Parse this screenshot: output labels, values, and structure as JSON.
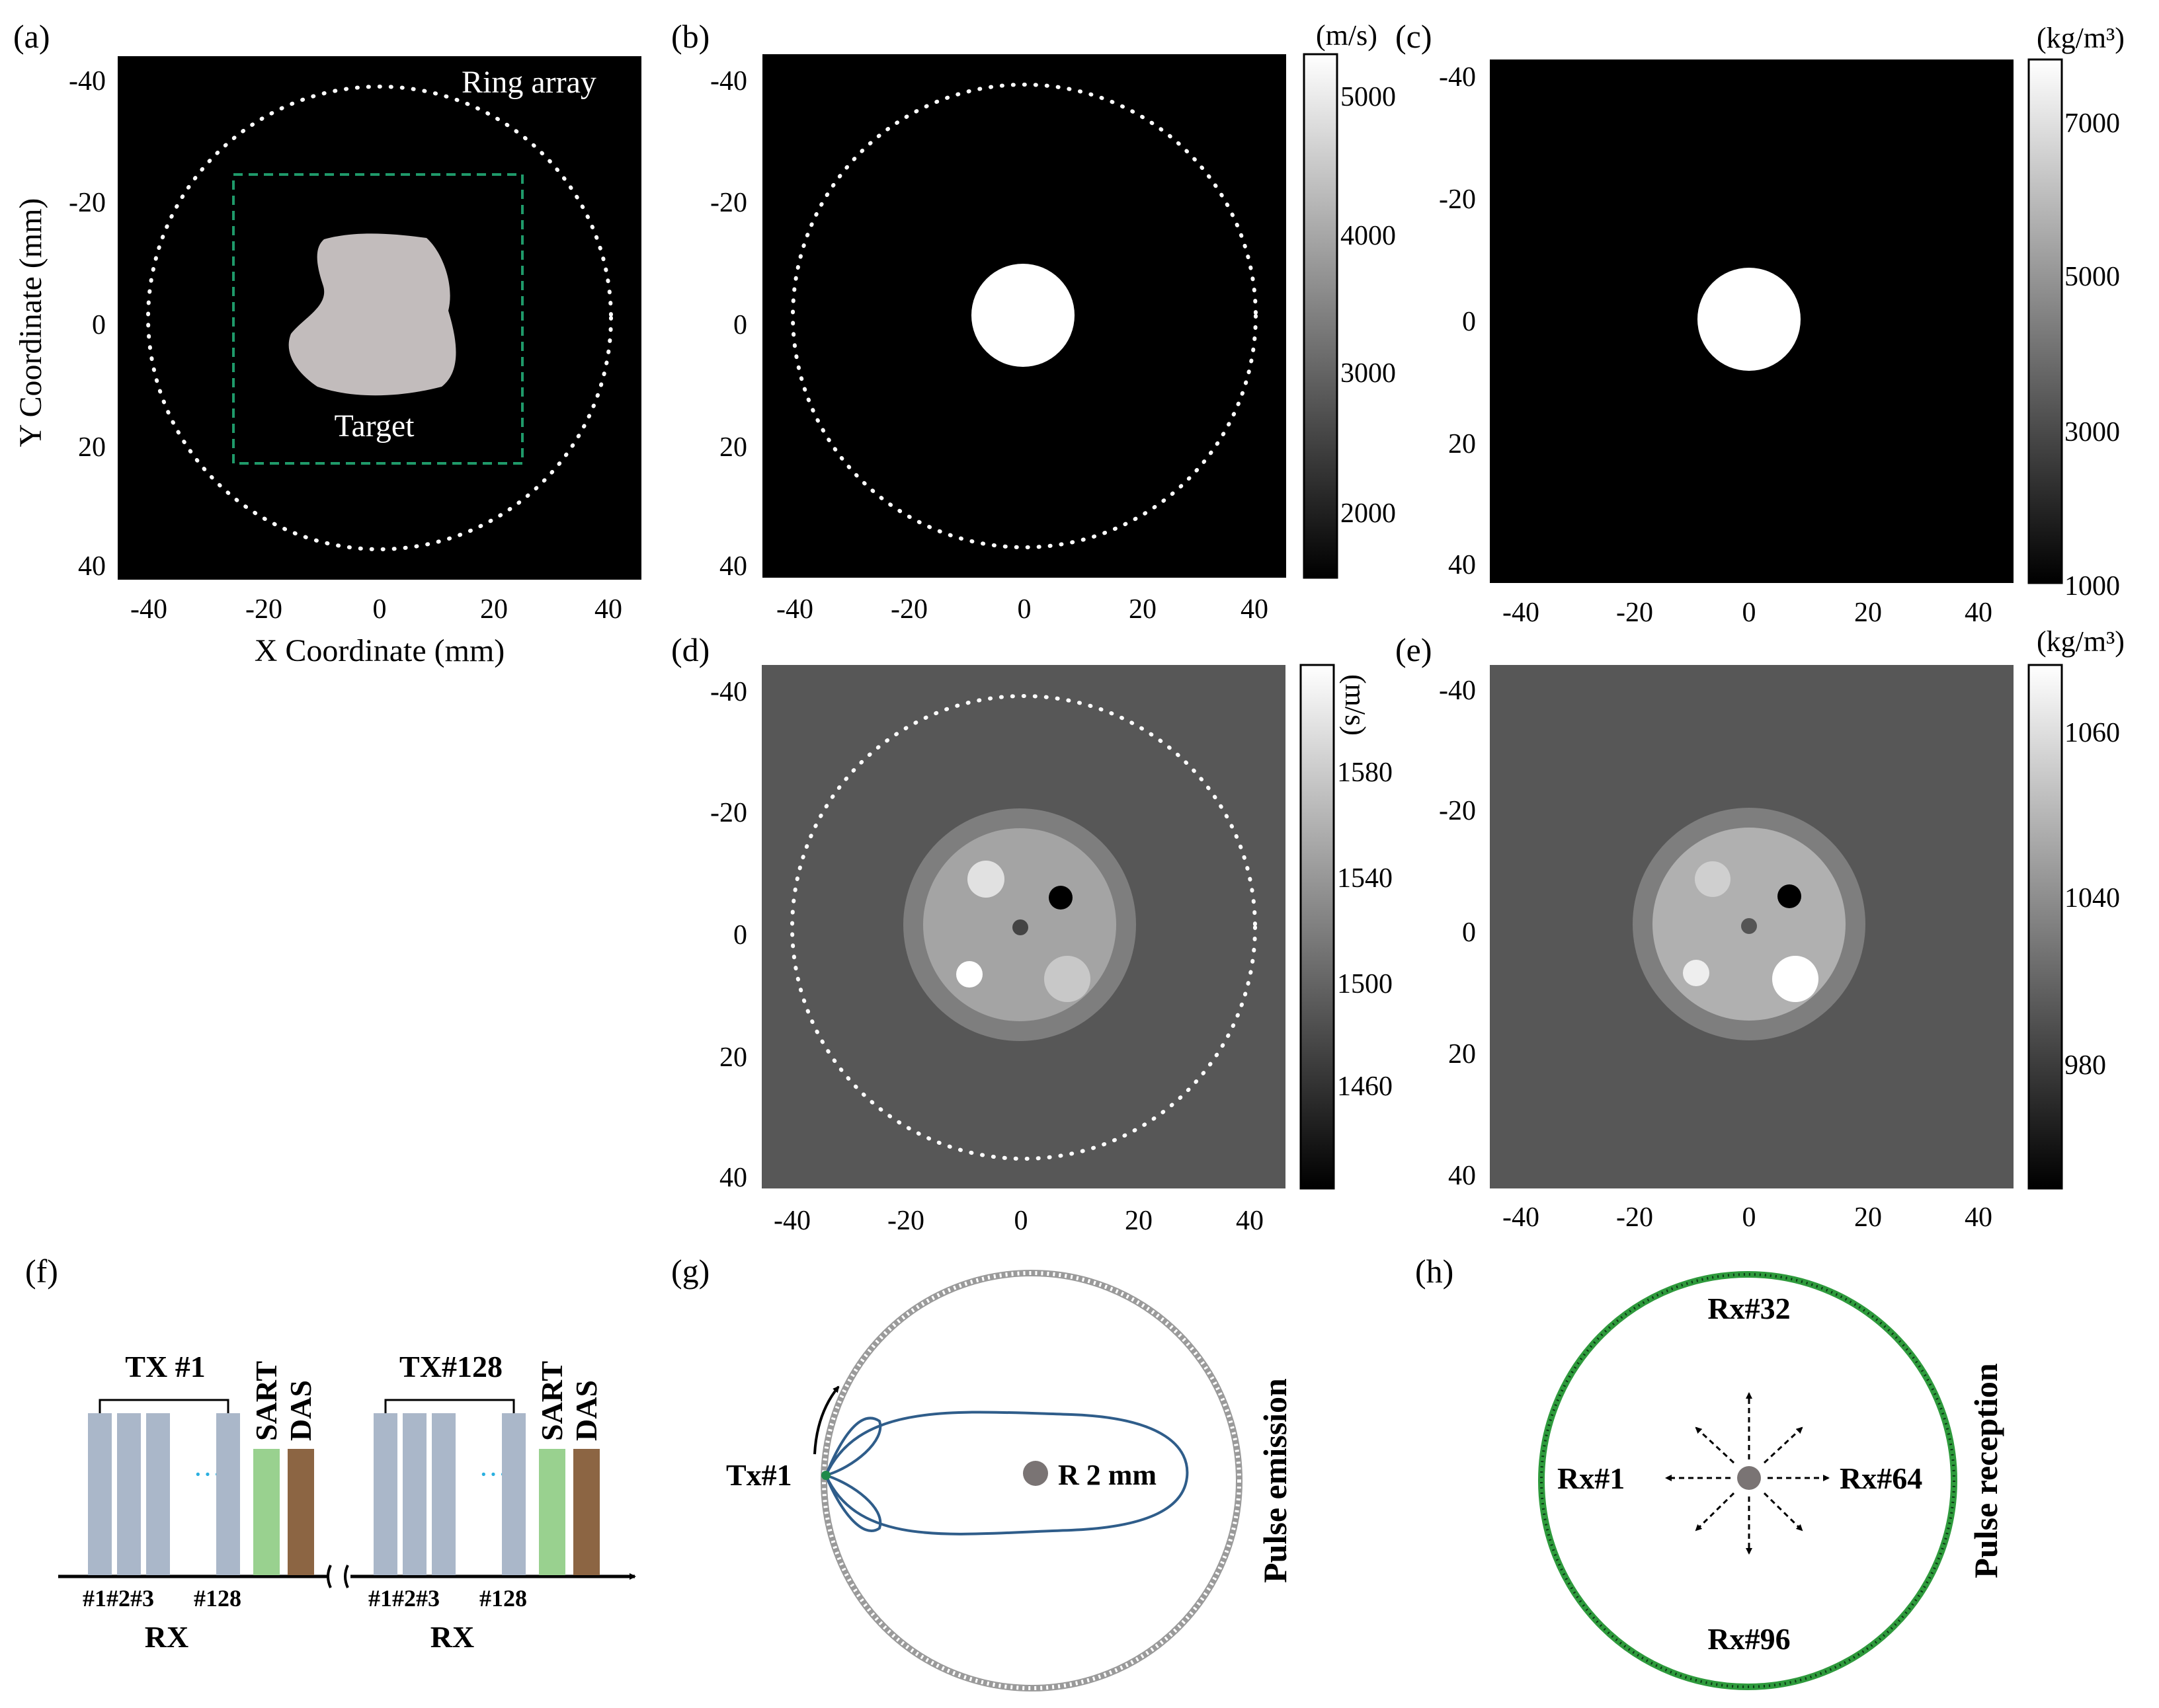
{
  "panel_labels": {
    "a": "(a)",
    "b": "(b)",
    "c": "(c)",
    "d": "(d)",
    "e": "(e)",
    "f": "(f)",
    "g": "(g)",
    "h": "(h)"
  },
  "axes": {
    "ticks": [
      "-40",
      "-20",
      "0",
      "20",
      "40"
    ],
    "xlabel": "X Coordinate (mm)",
    "ylabel": "Y Coordinate (mm)"
  },
  "panel_a": {
    "ring_label": "Ring array",
    "target_label": "Target"
  },
  "colorbars": {
    "b": {
      "unit": "(m/s)",
      "ticks": [
        "5000",
        "4000",
        "3000",
        "2000"
      ]
    },
    "c": {
      "unit": "(kg/m³)",
      "ticks": [
        "7000",
        "5000",
        "3000",
        "1000"
      ]
    },
    "d": {
      "unit": "(m/s)",
      "ticks": [
        "1580",
        "1540",
        "1500",
        "1460"
      ]
    },
    "e": {
      "unit": "(kg/m³)",
      "ticks": [
        "1060",
        "1040",
        "980"
      ]
    }
  },
  "panel_f": {
    "group1": {
      "tx": "TX #1",
      "sart": "SART",
      "das": "DAS",
      "rx": "RX",
      "elem_labels": "#1#2#3",
      "last_elem": "#128",
      "dots": "···"
    },
    "group2": {
      "tx": "TX#128",
      "sart": "SART",
      "das": "DAS",
      "rx": "RX",
      "elem_labels": "#1#2#3",
      "last_elem": "#128",
      "dots": "···"
    }
  },
  "panel_g": {
    "tx_label": "Tx#1",
    "radius_label": "R 2 mm",
    "side_label": "Pulse emission"
  },
  "panel_h": {
    "rx_top": "Rx#32",
    "rx_left": "Rx#1",
    "rx_right": "Rx#64",
    "rx_bottom": "Rx#96",
    "side_label": "Pulse reception"
  },
  "colors": {
    "green_dashed": "#1f9a6a",
    "lobe": "#2f5d8a",
    "bar_blue": "#aab7c9",
    "bar_green": "#99d18f",
    "bar_brown": "#8c6543",
    "ring_green": "#2e9a3c",
    "target_grey": "#c2bcbc"
  }
}
